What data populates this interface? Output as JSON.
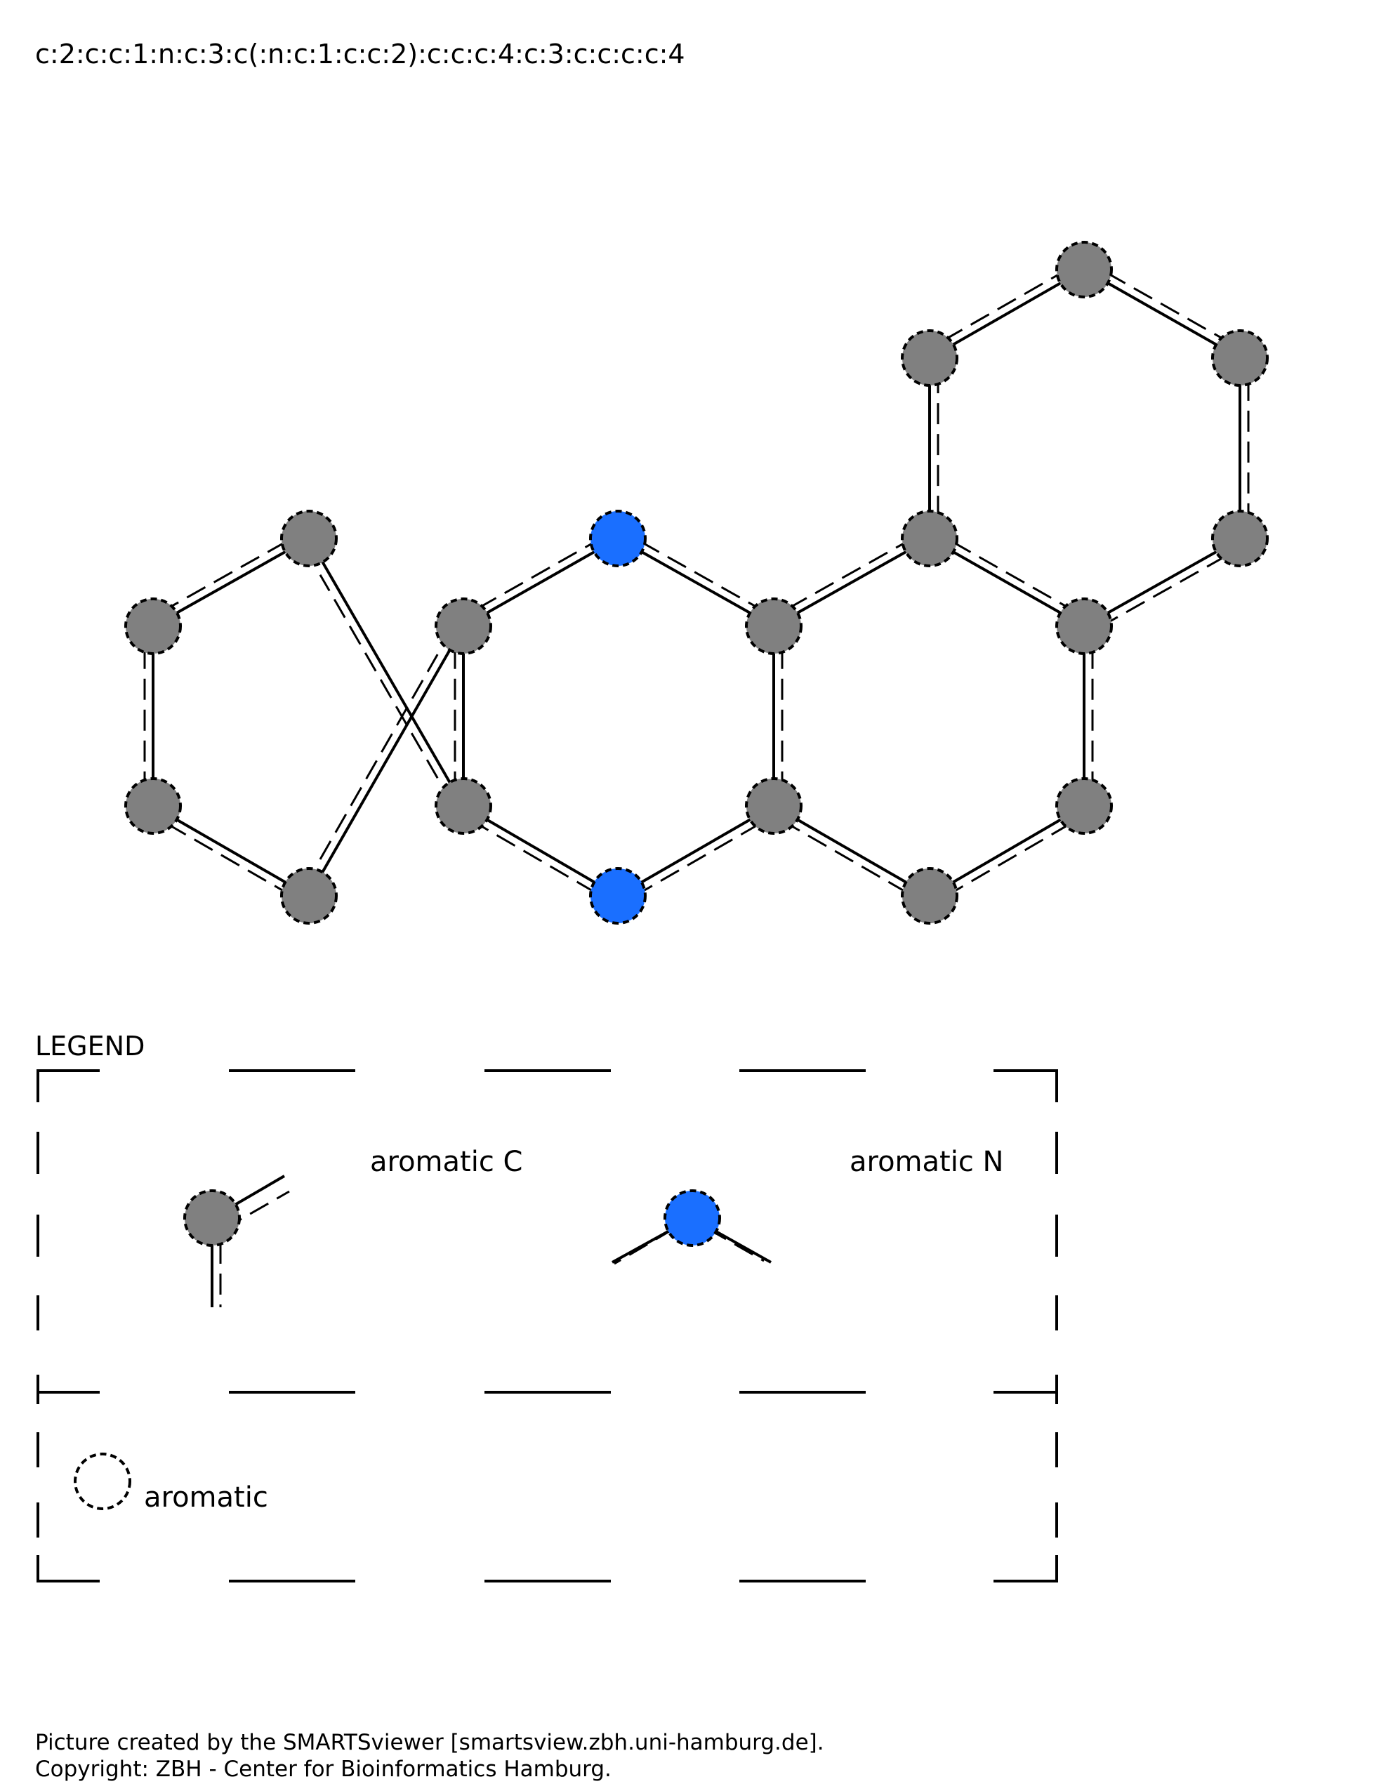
{
  "smarts": "c:2:c:c:1:n:c:3:c(:n:c:1:c:c:2):c:c:c:4:c:3:c:c:c:c:4",
  "colors": {
    "aromatic_c": "#808080",
    "aromatic_n": "#1a6fff",
    "line": "#000000"
  },
  "molecule": {
    "atoms": [
      {
        "id": "a1",
        "element": "C"
      },
      {
        "id": "a2",
        "element": "C"
      },
      {
        "id": "a3",
        "element": "C"
      },
      {
        "id": "a4",
        "element": "C"
      },
      {
        "id": "a5",
        "element": "C"
      },
      {
        "id": "a6",
        "element": "C"
      },
      {
        "id": "a7",
        "element": "N"
      },
      {
        "id": "a8",
        "element": "N"
      },
      {
        "id": "a9",
        "element": "C"
      },
      {
        "id": "a10",
        "element": "C"
      },
      {
        "id": "a11",
        "element": "C"
      },
      {
        "id": "a12",
        "element": "C"
      },
      {
        "id": "a13",
        "element": "C"
      },
      {
        "id": "a14",
        "element": "C"
      },
      {
        "id": "a15",
        "element": "C"
      },
      {
        "id": "a16",
        "element": "C"
      },
      {
        "id": "a17",
        "element": "C"
      },
      {
        "id": "a18",
        "element": "C"
      }
    ],
    "bonds": [
      [
        "a1",
        "a2"
      ],
      [
        "a2",
        "a3"
      ],
      [
        "a3",
        "a4"
      ],
      [
        "a4",
        "a5"
      ],
      [
        "a5",
        "a6"
      ],
      [
        "a6",
        "a1"
      ],
      [
        "a4",
        "a7"
      ],
      [
        "a7",
        "a9"
      ],
      [
        "a9",
        "a10"
      ],
      [
        "a10",
        "a8"
      ],
      [
        "a8",
        "a5"
      ],
      [
        "a9",
        "a13"
      ],
      [
        "a13",
        "a14"
      ],
      [
        "a14",
        "a12"
      ],
      [
        "a12",
        "a11"
      ],
      [
        "a11",
        "a10"
      ],
      [
        "a13",
        "a15"
      ],
      [
        "a15",
        "a16"
      ],
      [
        "a16",
        "a17"
      ],
      [
        "a17",
        "a18"
      ],
      [
        "a18",
        "a14"
      ]
    ]
  },
  "legend": {
    "title": "LEGEND",
    "items": [
      {
        "label": "aromatic C",
        "element": "C"
      },
      {
        "label": "aromatic N",
        "element": "N"
      }
    ],
    "aromatic_label": "aromatic"
  },
  "footer": {
    "line1": "Picture created by the SMARTSviewer [smartsview.zbh.uni-hamburg.de].",
    "line2": "Copyright: ZBH - Center for Bioinformatics Hamburg."
  }
}
